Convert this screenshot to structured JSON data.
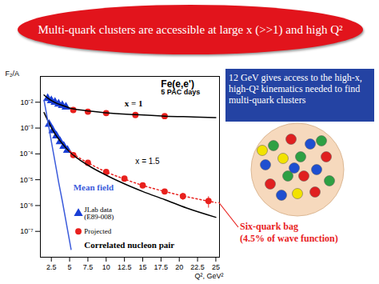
{
  "slide_title": "Multi-quark clusters are accessible at large x (>>1) and high Q²",
  "text_box": "12 GeV gives access to the high-x, high-Q² kinematics needed to find multi-quark clusters",
  "chart_data": {
    "type": "scatter",
    "title": "Fe(e,e')",
    "subtitle": "5 PAC days",
    "x_label": "Q², GeV²",
    "y_label": "F₂/A",
    "log": "y",
    "xlim": [
      1,
      25.5
    ],
    "xticks": [
      2.5,
      5,
      7.5,
      10,
      12.5,
      15,
      17.5,
      20,
      22.5,
      25
    ],
    "ylim": [
      1e-08,
      0.1
    ],
    "yticks": [
      {
        "value": 0.01,
        "label": "10⁻²"
      },
      {
        "value": 0.001,
        "label": "10⁻³"
      },
      {
        "value": 0.0001,
        "label": "10⁻⁴"
      },
      {
        "value": 1e-05,
        "label": "10⁻⁵"
      },
      {
        "value": 1e-06,
        "label": "10⁻⁶"
      },
      {
        "value": 1e-07,
        "label": "10⁻⁷"
      }
    ],
    "annotations": [
      "x = 1.5",
      "(4.5% of wave function)"
    ],
    "series": [
      {
        "name": "JLab data (E89-008)",
        "type": "scatter",
        "marker": "triangle",
        "color": "#1a3fd6",
        "x": [
          2,
          2.5,
          3,
          3.5,
          4,
          4.5,
          2.2,
          2.7,
          3.2,
          3.7,
          4.2,
          4.7
        ],
        "values": [
          0.014,
          0.0115,
          0.01,
          0.0085,
          0.0075,
          0.0065,
          0.0014,
          0.0008,
          0.0005,
          0.0003,
          0.0002,
          0.00014
        ]
      },
      {
        "name": "Projected",
        "type": "scatter",
        "marker": "circle",
        "color": "#e8211e",
        "x": [
          5.5,
          7.5,
          10,
          14,
          18,
          5.5,
          7.5,
          10,
          12.5,
          15,
          18,
          20.5,
          24
        ],
        "values": [
          0.005,
          0.0043,
          0.0038,
          0.0032,
          0.0029,
          9e-05,
          4.5e-05,
          2e-05,
          1.1e-05,
          6e-06,
          3.5e-06,
          2.3e-06,
          1.5e-06
        ],
        "errors": [
          0.0002,
          0.0002,
          0.0002,
          0.0002,
          0.0002,
          5e-06,
          3e-06,
          1.5e-06,
          1e-06,
          8e-07,
          7e-07,
          7e-07,
          7e-07
        ]
      },
      {
        "name": "x = 1",
        "type": "line",
        "line_style": "solid",
        "color": "#000000",
        "x": [
          1.5,
          2,
          3,
          4,
          5,
          7,
          10,
          14,
          18,
          22,
          25
        ],
        "values": [
          0.019,
          0.0145,
          0.0098,
          0.0075,
          0.006,
          0.0048,
          0.0039,
          0.0033,
          0.0029,
          0.0027,
          0.00255
        ]
      },
      {
        "name": "Correlated nucleon pair",
        "type": "line",
        "line_style": "solid",
        "color": "#000000",
        "x": [
          1.5,
          2,
          3,
          4,
          5,
          6,
          8,
          10,
          12,
          15,
          18,
          21,
          25
        ],
        "values": [
          0.004,
          0.002,
          0.0006,
          0.00025,
          0.00012,
          7e-05,
          3e-05,
          1.5e-05,
          8e-06,
          3.5e-06,
          1.7e-06,
          8e-07,
          3.5e-07
        ]
      },
      {
        "name": "Mean field",
        "type": "line",
        "line_style": "solid",
        "color": "#3b5bdb",
        "x": [
          1.5,
          2,
          2.5,
          3,
          3.5,
          4,
          4.5,
          5.2
        ],
        "values": [
          0.012,
          0.002,
          0.0003,
          5e-05,
          8e-06,
          1.5e-06,
          2.5e-07,
          2e-08
        ]
      },
      {
        "name": "Six-quark bag",
        "type": "line",
        "line_style": "dotted",
        "color": "#e8211e",
        "x": [
          5,
          6,
          8,
          10,
          12,
          15,
          18,
          21,
          25
        ],
        "values": [
          0.00013,
          8e-05,
          3.8e-05,
          2e-05,
          1.2e-05,
          6e-06,
          3.5e-06,
          2.2e-06,
          1.3e-06
        ]
      }
    ]
  }
}
